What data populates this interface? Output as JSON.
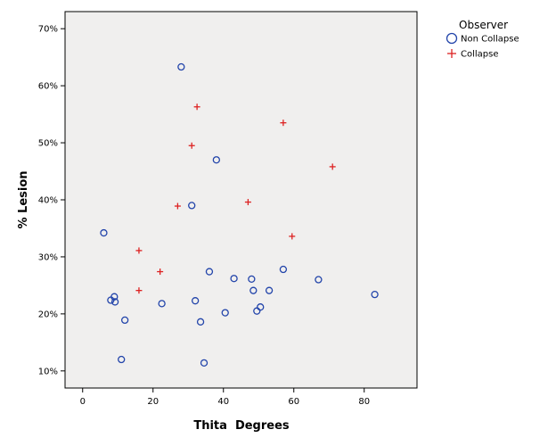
{
  "chart_data": {
    "type": "scatter",
    "xlabel": "Thita  Degrees",
    "ylabel": "% Lesion",
    "xlim": [
      -5,
      95
    ],
    "ylim": [
      7,
      73
    ],
    "x_ticks": [
      0,
      20,
      40,
      60,
      80
    ],
    "y_ticks": [
      10,
      20,
      30,
      40,
      50,
      60,
      70
    ],
    "y_tick_labels": [
      "10%",
      "20%",
      "30%",
      "40%",
      "50%",
      "60%",
      "70%"
    ],
    "grid": false,
    "plot_background": "#f0efee",
    "legend": {
      "title": "Observer",
      "placement": "top-right outside"
    },
    "series": [
      {
        "name": "Non Collapse",
        "marker": "circle",
        "color": "#2244aa",
        "points": [
          [
            28,
            63.3
          ],
          [
            38,
            47
          ],
          [
            31,
            39
          ],
          [
            6,
            34.2
          ],
          [
            36,
            27.4
          ],
          [
            57,
            27.8
          ],
          [
            43,
            26.2
          ],
          [
            48,
            26.1
          ],
          [
            67,
            26
          ],
          [
            48.5,
            24.1
          ],
          [
            53,
            24.1
          ],
          [
            83,
            23.4
          ],
          [
            9,
            23
          ],
          [
            8,
            22.4
          ],
          [
            9.2,
            22.1
          ],
          [
            32,
            22.3
          ],
          [
            22.5,
            21.8
          ],
          [
            50.5,
            21.2
          ],
          [
            49.5,
            20.5
          ],
          [
            40.5,
            20.2
          ],
          [
            12,
            18.9
          ],
          [
            33.5,
            18.6
          ],
          [
            11,
            12
          ],
          [
            34.5,
            11.4
          ]
        ]
      },
      {
        "name": "Collapse",
        "marker": "plus",
        "color": "#dd2222",
        "points": [
          [
            32.5,
            56.3
          ],
          [
            57,
            53.5
          ],
          [
            31,
            49.5
          ],
          [
            71,
            45.8
          ],
          [
            47,
            39.6
          ],
          [
            27,
            38.9
          ],
          [
            59.5,
            33.6
          ],
          [
            16,
            31.1
          ],
          [
            22,
            27.4
          ],
          [
            16,
            24.1
          ]
        ]
      }
    ]
  }
}
